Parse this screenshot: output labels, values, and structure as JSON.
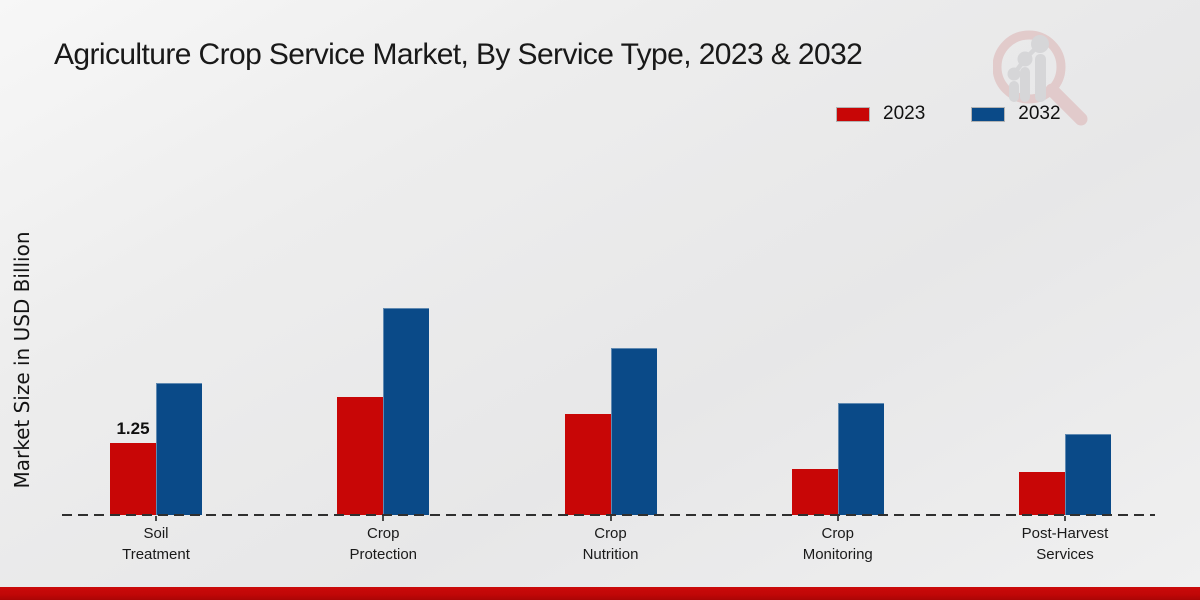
{
  "page": {
    "title": "Agriculture Crop Service Market, By Service Type, 2023 & 2032",
    "ylabel": "Market Size in USD Billion",
    "watermark_name": "market-research-future-logo",
    "footer_bar_color": "#c40808"
  },
  "legend": {
    "items": [
      {
        "label": "2023",
        "color": "#c80606"
      },
      {
        "label": "2032",
        "color": "#0a4a88"
      }
    ]
  },
  "chart_data": {
    "type": "bar",
    "title": "Agriculture Crop Service Market, By Service Type, 2023 & 2032",
    "xlabel": "",
    "ylabel": "Market Size in USD Billion",
    "categories": [
      "Soil Treatment",
      "Crop Protection",
      "Crop Nutrition",
      "Crop Monitoring",
      "Post-Harvest Services"
    ],
    "series": [
      {
        "name": "2023",
        "color": "#c80606",
        "values": [
          1.25,
          2.05,
          1.75,
          0.8,
          0.75
        ]
      },
      {
        "name": "2032",
        "color": "#0a4a88",
        "values": [
          2.3,
          3.6,
          2.9,
          1.95,
          1.4
        ]
      }
    ],
    "data_labels": [
      {
        "series": "2023",
        "category": "Soil Treatment",
        "text": "1.25"
      }
    ],
    "baseline": {
      "value": 0,
      "style": "dashed",
      "color": "#2f2f2f"
    },
    "legend_position": "top-right",
    "grid": false,
    "y_axis_ticks_visible": false,
    "ylim": [
      0,
      4.0
    ]
  }
}
